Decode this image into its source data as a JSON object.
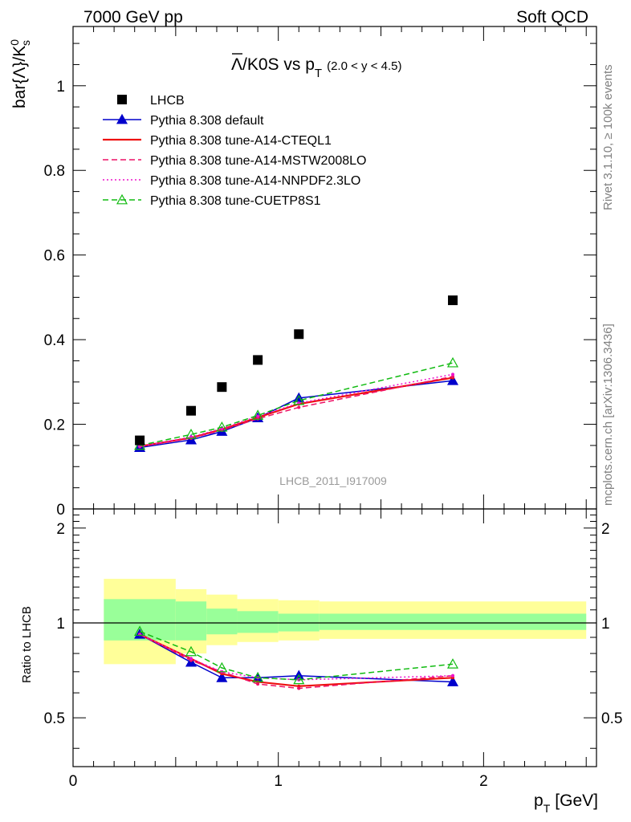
{
  "header": {
    "left": "7000 GeV pp",
    "right": "Soft QCD"
  },
  "title": {
    "main": "Λ/K0S vs p",
    "bar_char": "Λ",
    "rest": "/K0S vs p",
    "sub_T": "T",
    "range": "(2.0 < y < 4.5)"
  },
  "side_labels": {
    "rivet": "Rivet 3.1.10, ≥ 100k events",
    "mcplots": "mcplots.cern.ch [arXiv:1306.3436]"
  },
  "watermark": "LHCB_2011_I917009",
  "axes": {
    "ylabel_main": "bar{Λ}/K",
    "ylabel_main_sup": "0",
    "ylabel_main_sub": "s",
    "ylabel_ratio": "Ratio to LHCB",
    "xlabel": "p",
    "xlabel_sub": "T",
    "xlabel_unit": "[GeV]",
    "main_yticks": [
      "0",
      "0.2",
      "0.4",
      "0.6",
      "0.8",
      "1"
    ],
    "ratio_yticks": [
      "0.5",
      "1",
      "2"
    ],
    "xticks": [
      "0",
      "1",
      "2"
    ]
  },
  "legend": [
    {
      "label": "LHCB",
      "color": "#000000",
      "marker": "square",
      "dash": "none"
    },
    {
      "label": "Pythia 8.308 default",
      "color": "#0000cc",
      "marker": "triangle",
      "dash": "solid"
    },
    {
      "label": "Pythia 8.308 tune-A14-CTEQL1",
      "color": "#ee1111",
      "marker": "none",
      "dash": "solid"
    },
    {
      "label": "Pythia 8.308 tune-A14-MSTW2008LO",
      "color": "#ee1166",
      "marker": "none",
      "dash": "dashed"
    },
    {
      "label": "Pythia 8.308 tune-A14-NNPDF2.3LO",
      "color": "#ee11cc",
      "marker": "none",
      "dash": "dotted"
    },
    {
      "label": "Pythia 8.308 tune-CUETP8S1",
      "color": "#11bb11",
      "marker": "open-triangle",
      "dash": "dashed"
    }
  ],
  "chart_data": {
    "type": "line",
    "xlim": [
      0,
      2.55
    ],
    "ylim_main": [
      0,
      1.14
    ],
    "ylim_ratio": [
      0.35,
      2.3
    ],
    "ratio_log_scale": true,
    "data": {
      "name": "LHCB",
      "x": [
        0.325,
        0.575,
        0.725,
        0.9,
        1.1,
        1.85
      ],
      "y": [
        0.162,
        0.232,
        0.288,
        0.352,
        0.413,
        0.493
      ]
    },
    "bins": [
      0.15,
      0.5,
      0.65,
      0.8,
      1.0,
      1.2,
      2.5
    ],
    "ratio_band_stat": [
      [
        0.88,
        1.19
      ],
      [
        0.88,
        1.17
      ],
      [
        0.92,
        1.11
      ],
      [
        0.93,
        1.09
      ],
      [
        0.94,
        1.07
      ],
      [
        0.95,
        1.07
      ]
    ],
    "ratio_band_total": [
      [
        0.74,
        1.38
      ],
      [
        0.8,
        1.28
      ],
      [
        0.85,
        1.23
      ],
      [
        0.87,
        1.19
      ],
      [
        0.88,
        1.18
      ],
      [
        0.89,
        1.17
      ]
    ],
    "series": [
      {
        "name": "Pythia 8.308 default",
        "x": [
          0.325,
          0.575,
          0.725,
          0.9,
          1.1,
          1.85
        ],
        "y": [
          0.145,
          0.163,
          0.183,
          0.215,
          0.262,
          0.303
        ],
        "ratio": [
          0.92,
          0.75,
          0.67,
          0.67,
          0.68,
          0.65
        ]
      },
      {
        "name": "Pythia 8.308 tune-A14-CTEQL1",
        "x": [
          0.325,
          0.575,
          0.725,
          0.9,
          1.1,
          1.85
        ],
        "y": [
          0.148,
          0.168,
          0.188,
          0.216,
          0.248,
          0.31
        ],
        "ratio": [
          0.92,
          0.77,
          0.69,
          0.65,
          0.63,
          0.67
        ]
      },
      {
        "name": "Pythia 8.308 tune-A14-MSTW2008LO",
        "x": [
          0.325,
          0.575,
          0.725,
          0.9,
          1.1,
          1.85
        ],
        "y": [
          0.147,
          0.167,
          0.186,
          0.213,
          0.24,
          0.313
        ],
        "ratio": [
          0.92,
          0.76,
          0.7,
          0.64,
          0.62,
          0.68
        ]
      },
      {
        "name": "Pythia 8.308 tune-A14-NNPDF2.3LO",
        "x": [
          0.325,
          0.575,
          0.725,
          0.9,
          1.1,
          1.85
        ],
        "y": [
          0.148,
          0.17,
          0.19,
          0.219,
          0.25,
          0.318
        ],
        "ratio": [
          0.92,
          0.77,
          0.7,
          0.67,
          0.66,
          0.68
        ]
      },
      {
        "name": "Pythia 8.308 tune-CUETP8S1",
        "x": [
          0.325,
          0.575,
          0.725,
          0.9,
          1.1,
          1.85
        ],
        "y": [
          0.15,
          0.176,
          0.193,
          0.221,
          0.256,
          0.345
        ],
        "ratio": [
          0.94,
          0.81,
          0.72,
          0.67,
          0.66,
          0.74
        ]
      }
    ]
  }
}
